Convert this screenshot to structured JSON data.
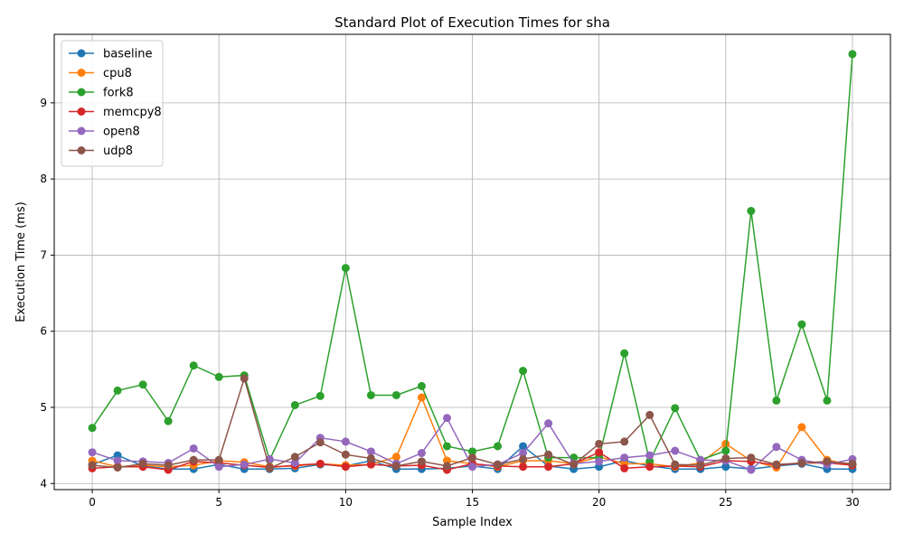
{
  "chart_data": {
    "type": "line",
    "title": "Standard Plot of Execution Times for sha",
    "xlabel": "Sample Index",
    "ylabel": "Execution Time (ms)",
    "xlim": [
      -1.5,
      31.5
    ],
    "ylim": [
      3.92,
      9.9
    ],
    "xticks": [
      0,
      5,
      10,
      15,
      20,
      25,
      30
    ],
    "yticks": [
      4,
      5,
      6,
      7,
      8,
      9
    ],
    "grid": true,
    "legend_position": "top-left",
    "x": [
      0,
      1,
      2,
      3,
      4,
      5,
      6,
      7,
      8,
      9,
      10,
      11,
      12,
      13,
      14,
      15,
      16,
      17,
      18,
      19,
      20,
      21,
      22,
      23,
      24,
      25,
      26,
      27,
      28,
      29,
      30
    ],
    "series": [
      {
        "name": "baseline",
        "color": "#1f77b4",
        "values": [
          4.25,
          4.37,
          4.23,
          4.19,
          4.19,
          4.25,
          4.19,
          4.19,
          4.2,
          4.25,
          4.23,
          4.3,
          4.19,
          4.19,
          4.2,
          4.23,
          4.19,
          4.49,
          4.23,
          4.19,
          4.22,
          4.3,
          4.23,
          4.19,
          4.19,
          4.22,
          4.19,
          4.23,
          4.26,
          4.19,
          4.19
        ]
      },
      {
        "name": "cpu8",
        "color": "#ff7f0e",
        "values": [
          4.3,
          4.22,
          4.24,
          4.22,
          4.24,
          4.3,
          4.28,
          4.22,
          4.23,
          4.26,
          4.24,
          4.25,
          4.35,
          5.13,
          4.3,
          4.26,
          4.22,
          4.3,
          4.3,
          4.26,
          4.35,
          4.26,
          4.26,
          4.22,
          4.27,
          4.52,
          4.3,
          4.21,
          4.74,
          4.31,
          4.24
        ]
      },
      {
        "name": "fork8",
        "color": "#2ca02c",
        "values": [
          4.73,
          5.22,
          5.3,
          4.82,
          5.55,
          5.4,
          5.42,
          4.31,
          5.03,
          5.15,
          6.83,
          5.16,
          5.16,
          5.28,
          4.49,
          4.42,
          4.49,
          5.48,
          4.34,
          4.34,
          4.34,
          5.71,
          4.29,
          4.99,
          4.31,
          4.43,
          7.58,
          5.09,
          6.09,
          5.09,
          9.64
        ]
      },
      {
        "name": "memcpy8",
        "color": "#d62728",
        "values": [
          4.2,
          4.22,
          4.22,
          4.18,
          4.29,
          4.27,
          4.24,
          4.21,
          4.24,
          4.26,
          4.22,
          4.25,
          4.23,
          4.24,
          4.18,
          4.26,
          4.23,
          4.22,
          4.22,
          4.26,
          4.41,
          4.2,
          4.22,
          4.23,
          4.22,
          4.3,
          4.29,
          4.24,
          4.27,
          4.27,
          4.24
        ]
      },
      {
        "name": "open8",
        "color": "#9467bd",
        "values": [
          4.41,
          4.3,
          4.29,
          4.27,
          4.46,
          4.22,
          4.25,
          4.32,
          4.27,
          4.6,
          4.55,
          4.42,
          4.26,
          4.4,
          4.86,
          4.22,
          4.25,
          4.4,
          4.79,
          4.26,
          4.29,
          4.34,
          4.37,
          4.43,
          4.31,
          4.3,
          4.18,
          4.48,
          4.31,
          4.25,
          4.32
        ]
      },
      {
        "name": "udp8",
        "color": "#8c564b",
        "values": [
          4.24,
          4.21,
          4.26,
          4.24,
          4.31,
          4.31,
          5.38,
          4.2,
          4.35,
          4.54,
          4.38,
          4.33,
          4.23,
          4.29,
          4.23,
          4.34,
          4.25,
          4.32,
          4.38,
          4.25,
          4.52,
          4.55,
          4.9,
          4.25,
          4.24,
          4.33,
          4.34,
          4.25,
          4.27,
          4.29,
          4.26
        ]
      }
    ]
  }
}
